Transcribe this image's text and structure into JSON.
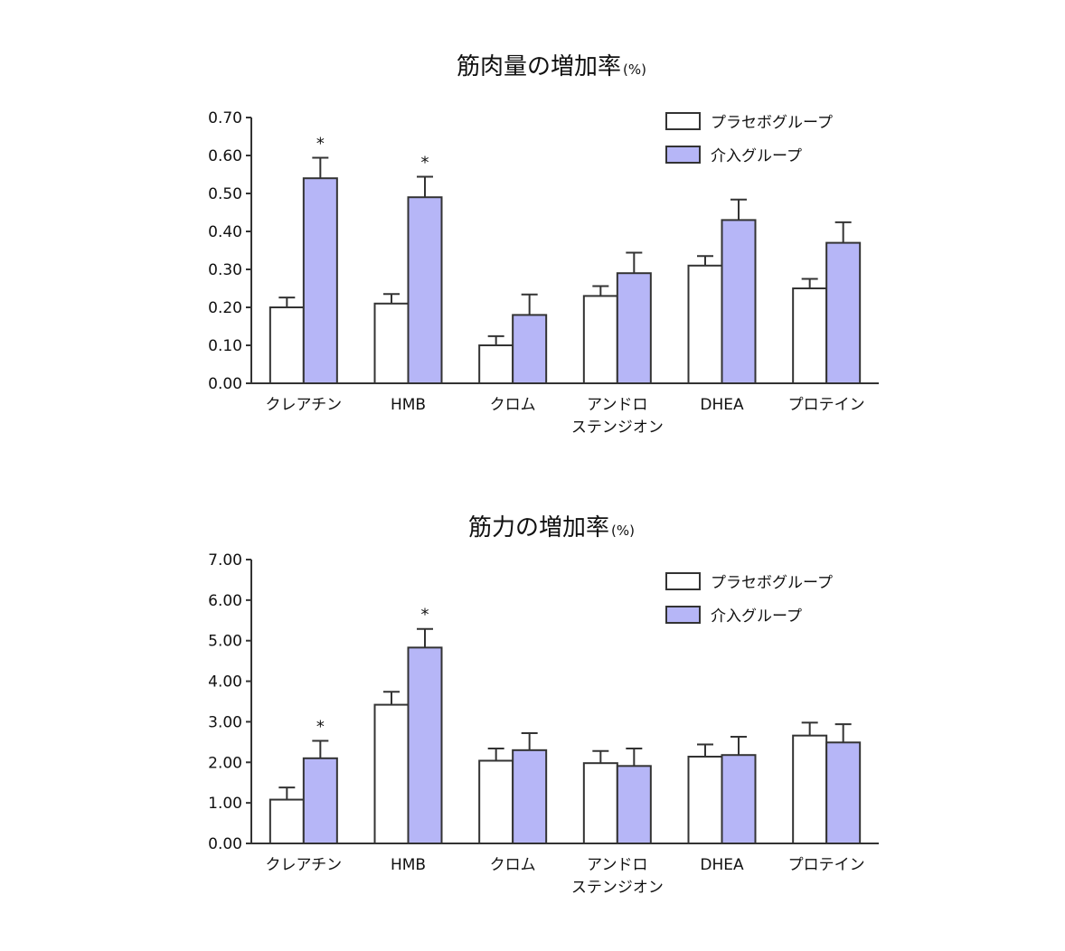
{
  "colors": {
    "placebo": "#ffffff",
    "intervention": "#b6b6f7",
    "stroke": "#333333"
  },
  "chart_data": [
    {
      "type": "bar",
      "title": "筋肉量の増加率",
      "title_unit": "(%)",
      "categories": [
        "クレアチン",
        "HMB",
        "クロム",
        "アンドロ\nステンジオン",
        "DHEA",
        "プロテイン"
      ],
      "series": [
        {
          "name": "プラセボグループ",
          "values": [
            0.2,
            0.21,
            0.1,
            0.23,
            0.31,
            0.25
          ],
          "errors": [
            0.026,
            0.025,
            0.024,
            0.026,
            0.025,
            0.025
          ]
        },
        {
          "name": "介入グループ",
          "values": [
            0.54,
            0.49,
            0.18,
            0.29,
            0.43,
            0.37
          ],
          "errors": [
            0.054,
            0.054,
            0.054,
            0.054,
            0.054,
            0.054
          ]
        }
      ],
      "significance": [
        true,
        true,
        false,
        false,
        false,
        false
      ],
      "significance_mark": "*",
      "yticks": [
        "0.00",
        "0.10",
        "0.20",
        "0.30",
        "0.40",
        "0.50",
        "0.60",
        "0.70"
      ],
      "ylim": [
        0,
        0.7
      ],
      "legend": "top-right"
    },
    {
      "type": "bar",
      "title": "筋力の増加率",
      "title_unit": "(%)",
      "categories": [
        "クレアチン",
        "HMB",
        "クロム",
        "アンドロ\nステンジオン",
        "DHEA",
        "プロテイン"
      ],
      "series": [
        {
          "name": "プラセボグループ",
          "values": [
            1.08,
            3.42,
            2.04,
            1.98,
            2.14,
            2.66
          ],
          "errors": [
            0.3,
            0.32,
            0.3,
            0.3,
            0.3,
            0.32
          ]
        },
        {
          "name": "介入グループ",
          "values": [
            2.1,
            4.83,
            2.3,
            1.91,
            2.18,
            2.49
          ],
          "errors": [
            0.43,
            0.46,
            0.42,
            0.43,
            0.45,
            0.45
          ]
        }
      ],
      "significance": [
        true,
        true,
        false,
        false,
        false,
        false
      ],
      "significance_mark": "*",
      "yticks": [
        "0.00",
        "1.00",
        "2.00",
        "3.00",
        "4.00",
        "5.00",
        "6.00",
        "7.00"
      ],
      "ylim": [
        0,
        7.0
      ],
      "legend": "top-right"
    }
  ]
}
